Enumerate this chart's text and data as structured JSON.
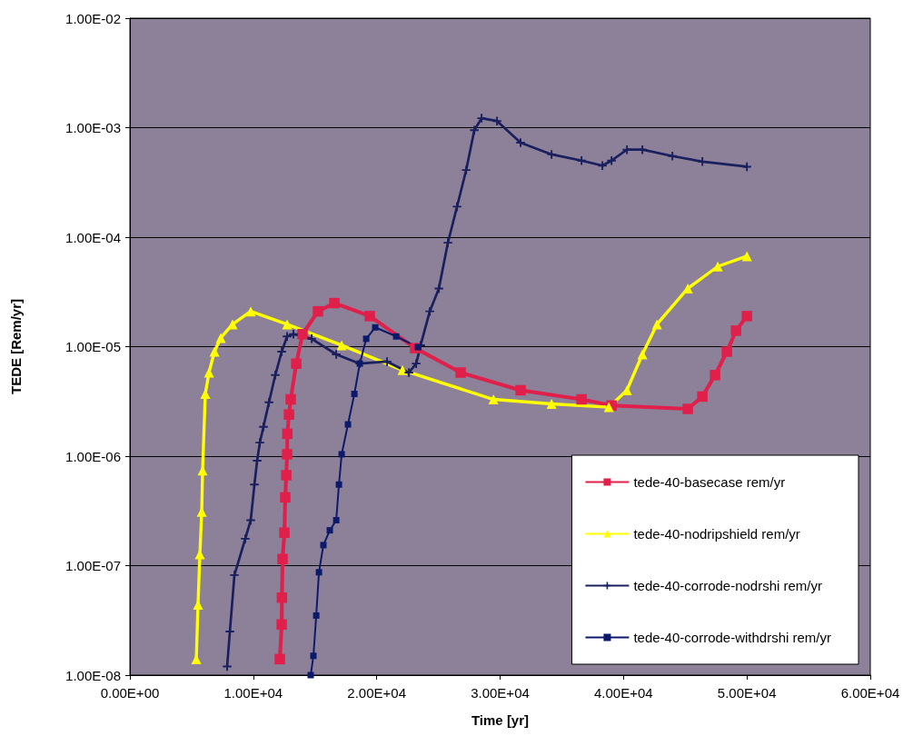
{
  "chart_data": {
    "type": "line",
    "xlabel": "Time [yr]",
    "ylabel": "TEDE [Rem/yr]",
    "log": "y",
    "grid": "y",
    "legend": "bottom right",
    "xlim": [
      0,
      60000
    ],
    "xticks": [
      {
        "value": 0,
        "label": "0.00E+00"
      },
      {
        "value": 10000,
        "label": "1.00E+04"
      },
      {
        "value": 20000,
        "label": "2.00E+04"
      },
      {
        "value": 30000,
        "label": "3.00E+04"
      },
      {
        "value": 40000,
        "label": "4.00E+04"
      },
      {
        "value": 50000,
        "label": "5.00E+04"
      },
      {
        "value": 60000,
        "label": "6.00E+04"
      }
    ],
    "ylim": [
      1e-08,
      0.01
    ],
    "yticks": [
      {
        "value": 1e-08,
        "label": "1.00E-08"
      },
      {
        "value": 1e-07,
        "label": "1.00E-07"
      },
      {
        "value": 1e-06,
        "label": "1.00E-06"
      },
      {
        "value": 1e-05,
        "label": "1.00E-05"
      },
      {
        "value": 0.0001,
        "label": "1.00E-04"
      },
      {
        "value": 0.001,
        "label": "1.00E-03"
      },
      {
        "value": 0.01,
        "label": "1.00E-02"
      }
    ],
    "series": [
      {
        "name": "tede-40-basecase rem/yr",
        "color": "#e0204a",
        "marker": "square",
        "x": [
          12150,
          12300,
          12320,
          12370,
          12520,
          12590,
          12670,
          12740,
          12760,
          12890,
          13030,
          13480,
          13990,
          15240,
          16570,
          19440,
          23120,
          26800,
          31660,
          36600,
          39030,
          45210,
          46390,
          47420,
          48380,
          49120,
          50000
        ],
        "values": [
          1.4e-08,
          2.9e-08,
          5.1e-08,
          1.15e-07,
          2e-07,
          4.2e-07,
          6.7e-07,
          1.04e-06,
          1.6e-06,
          2.4e-06,
          3.3e-06,
          7e-06,
          1.3e-05,
          2.1e-05,
          2.5e-05,
          1.9e-05,
          9.7e-06,
          5.8e-06,
          4e-06,
          3.3e-06,
          2.9e-06,
          2.7e-06,
          3.5e-06,
          5.5e-06,
          9e-06,
          1.4e-05,
          1.9e-05
        ]
      },
      {
        "name": "tede-40-nodripshield rem/yr",
        "color": "#ffff00",
        "marker": "triangle",
        "x": [
          5380,
          5520,
          5670,
          5820,
          5890,
          6110,
          6410,
          6850,
          7360,
          8320,
          9790,
          12740,
          17160,
          22090,
          29460,
          34170,
          38810,
          40280,
          41530,
          42710,
          45210,
          47640,
          50000
        ],
        "values": [
          1.4e-08,
          4.4e-08,
          1.27e-07,
          3.1e-07,
          7.4e-07,
          3.7e-06,
          5.8e-06,
          9e-06,
          1.2e-05,
          1.6e-05,
          2.1e-05,
          1.6e-05,
          1.03e-05,
          6.1e-06,
          3.3e-06,
          3e-06,
          2.8e-06,
          4e-06,
          8.5e-06,
          1.6e-05,
          3.4e-05,
          5.4e-05,
          6.7e-05
        ]
      },
      {
        "name": "tede-40-corrode-nodrshi rem/yr",
        "color": "#1a1f5e",
        "marker": "cross",
        "x": [
          7880,
          8100,
          8470,
          9350,
          9790,
          10090,
          10310,
          10530,
          10820,
          11270,
          11780,
          12300,
          12740,
          13250,
          14730,
          16720,
          18630,
          20840,
          22610,
          23200,
          23560,
          24300,
          25040,
          25770,
          26510,
          27250,
          27910,
          28500,
          29750,
          31660,
          34170,
          36600,
          38290,
          39030,
          40280,
          41530,
          43960,
          46390,
          50000
        ],
        "values": [
          1.2e-08,
          2.5e-08,
          8.2e-08,
          1.76e-07,
          2.6e-07,
          5.5e-07,
          9.1e-07,
          1.33e-06,
          1.85e-06,
          3.1e-06,
          5.5e-06,
          9e-06,
          1.24e-05,
          1.3e-05,
          1.18e-05,
          8.5e-06,
          7e-06,
          7.3e-06,
          5.8e-06,
          7e-06,
          1.03e-05,
          2.1e-05,
          3.4e-05,
          8.9e-05,
          0.00019,
          0.00041,
          0.00095,
          0.00122,
          0.00115,
          0.00073,
          0.00057,
          0.0005,
          0.00045,
          0.0005,
          0.00063,
          0.00063,
          0.00055,
          0.00049,
          0.00044
        ]
      },
      {
        "name": "tede-40-corrode-withdrshi rem/yr",
        "color": "#0d1a6b",
        "marker": "square",
        "x": [
          14650,
          14870,
          15100,
          15320,
          15680,
          16200,
          16720,
          16940,
          17160,
          17670,
          18190,
          18630,
          19150,
          19880,
          21580,
          23340
        ],
        "values": [
          1e-08,
          1.5e-08,
          3.5e-08,
          8.7e-08,
          1.54e-07,
          2.1e-07,
          2.6e-07,
          5.5e-07,
          1.04e-06,
          1.95e-06,
          3.7e-06,
          7e-06,
          1.18e-05,
          1.5e-05,
          1.24e-05,
          9.9e-06
        ]
      }
    ]
  }
}
